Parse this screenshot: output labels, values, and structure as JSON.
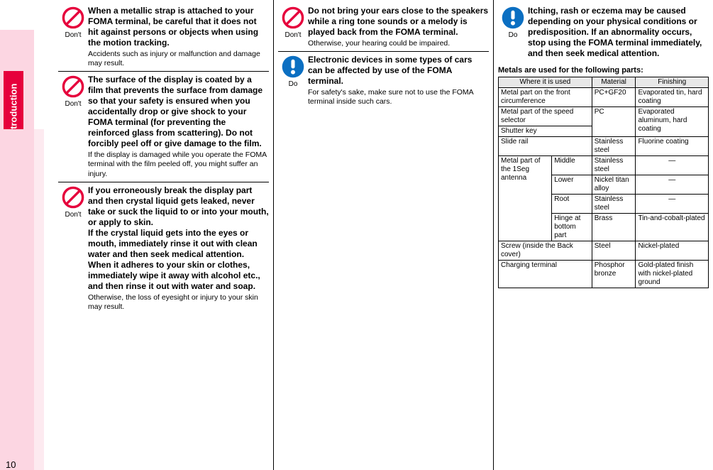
{
  "sidebar": {
    "label": "Introduction",
    "page_number": "10"
  },
  "icons": {
    "dont_label": "Don't",
    "do_label": "Do",
    "dont_color": "#e6003c",
    "do_color": "#0b6fc2"
  },
  "col1": [
    {
      "kind": "dont",
      "bold": "When a metallic strap is attached to your FOMA terminal, be careful that it does not hit against persons or objects when using the motion tracking.",
      "note": "Accidents such as injury or malfunction and damage may result."
    },
    {
      "kind": "dont",
      "bold": "The surface of the display is coated by a film that prevents the surface from damage so that your safety is ensured when you accidentally drop or give shock to your FOMA terminal (for preventing the reinforced glass from scattering). Do not forcibly peel off or give damage to the film.",
      "note": "If the display is damaged while you operate the FOMA terminal with the film peeled off, you might suffer an injury."
    },
    {
      "kind": "dont",
      "bold": "If you erroneously break the display part and then crystal liquid gets leaked, never take or suck the liquid to or into your mouth, or apply to skin.\nIf the crystal liquid gets into the eyes or mouth, immediately rinse it out with clean water and then seek medical attention. When it adheres to your skin or clothes, immediately wipe it away with alcohol etc., and then rinse it out with water and soap.",
      "note": "Otherwise, the loss of eyesight or injury to your skin may result."
    }
  ],
  "col2": [
    {
      "kind": "dont",
      "bold": "Do not bring your ears close to the speakers while a ring tone sounds or a melody is played back from the FOMA terminal.",
      "note": "Otherwise, your hearing could be impaired."
    },
    {
      "kind": "do",
      "bold": "Electronic devices in some types of cars can be affected by use of the FOMA terminal.",
      "note": "For safety's sake, make sure not to use the FOMA terminal inside such cars."
    }
  ],
  "col3": {
    "items": [
      {
        "kind": "do",
        "bold": "Itching, rash or eczema may be caused depending on your physical conditions or predisposition. If an abnormality occurs, stop using the FOMA terminal immediately, and then seek medical attention.",
        "note": ""
      }
    ],
    "metals_heading": "Metals are used for the following parts:",
    "table": {
      "headers": [
        "Where it is used",
        "Material",
        "Finishing"
      ],
      "rows": [
        {
          "where": "Metal part on the front circumference",
          "material": "PC+GF20",
          "finishing": "Evaporated tin, hard coating"
        },
        {
          "where": "Metal part of the speed selector",
          "material": "PC",
          "finishing": "Evaporated aluminum, hard coating",
          "material_rowspan": 2,
          "finishing_rowspan": 2
        },
        {
          "where": "Shutter key"
        },
        {
          "where": "Slide rail",
          "material": "Stainless steel",
          "finishing": "Fluorine coating"
        },
        {
          "where": "Metal part of the 1Seg antenna",
          "where_rowspan": 4,
          "sub": "Middle",
          "material": "Stainless steel",
          "finishing": "—"
        },
        {
          "sub": "Lower",
          "material": "Nickel titan alloy",
          "finishing": "—"
        },
        {
          "sub": "Root",
          "material": "Stainless steel",
          "finishing": "—"
        },
        {
          "sub": "Hinge at bottom part",
          "material": "Brass",
          "finishing": "Tin-and-cobalt-plated"
        },
        {
          "where": "Screw (inside the Back cover)",
          "material": "Steel",
          "finishing": "Nickel-plated"
        },
        {
          "where": "Charging terminal",
          "material": "Phosphor bronze",
          "finishing": "Gold-plated finish with nickel-plated ground"
        }
      ]
    }
  }
}
